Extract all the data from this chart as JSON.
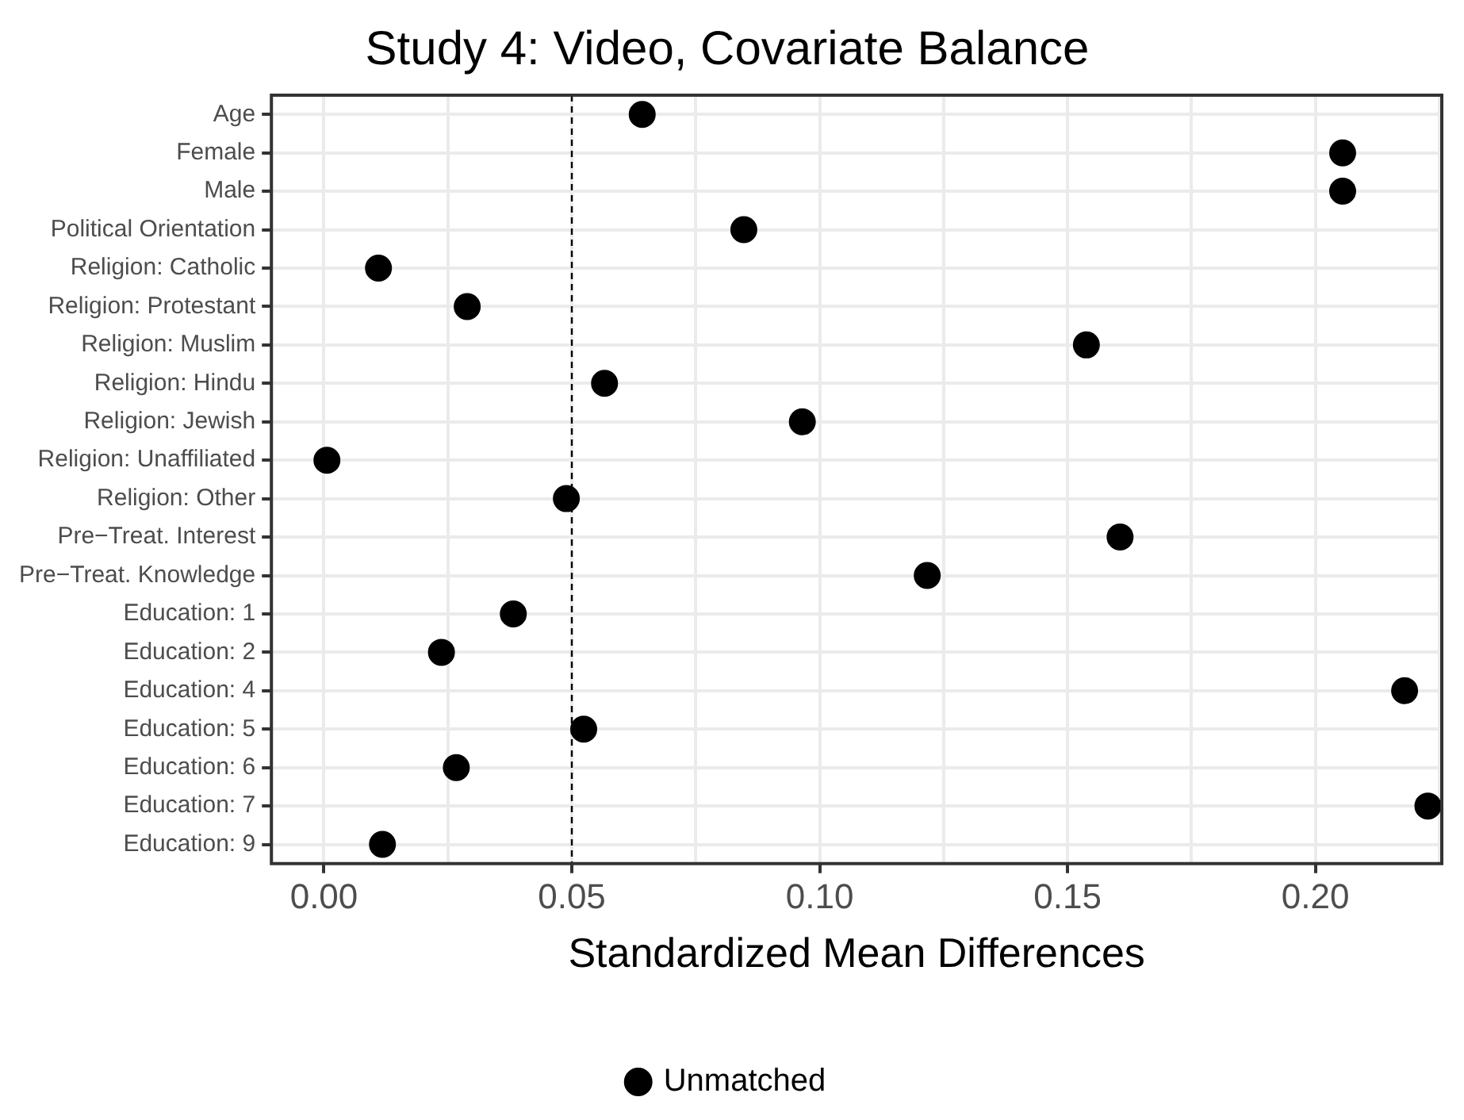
{
  "chart_data": {
    "type": "scatter",
    "title": "Study 4: Video, Covariate Balance",
    "xlabel": "Standardized Mean Differences",
    "categories": [
      "Age",
      "Female",
      "Male",
      "Political Orientation",
      "Religion: Catholic",
      "Religion: Protestant",
      "Religion: Muslim",
      "Religion: Hindu",
      "Religion: Jewish",
      "Religion: Unaffiliated",
      "Religion: Other",
      "Pre−Treat. Interest",
      "Pre−Treat. Knowledge",
      "Education: 1",
      "Education: 2",
      "Education: 4",
      "Education: 5",
      "Education: 6",
      "Education: 7",
      "Education: 9"
    ],
    "series": [
      {
        "name": "Unmatched",
        "color": "#000000",
        "values": [
          0.0642,
          0.2055,
          0.2055,
          0.0847,
          0.011,
          0.0289,
          0.1538,
          0.0566,
          0.0965,
          0.0006,
          0.0489,
          0.1606,
          0.1217,
          0.0382,
          0.0237,
          0.218,
          0.0524,
          0.0267,
          0.2227,
          0.0118
        ]
      }
    ],
    "orientation": "horizontal",
    "xlim": [
      -0.0106,
      0.2255
    ],
    "xticks": [
      {
        "value": 0,
        "label": "0.00"
      },
      {
        "value": 0.025,
        "label": null
      },
      {
        "value": 0.05,
        "label": "0.05"
      },
      {
        "value": 0.075,
        "label": null
      },
      {
        "value": 0.1,
        "label": "0.10"
      },
      {
        "value": 0.125,
        "label": null
      },
      {
        "value": 0.15,
        "label": "0.15"
      },
      {
        "value": 0.175,
        "label": null
      },
      {
        "value": 0.2,
        "label": "0.20"
      },
      {
        "value": 0.225,
        "label": null
      }
    ],
    "ref_lines": [
      {
        "axis": "x",
        "value": 0.05,
        "color": "#000000",
        "line_style": "dashed"
      }
    ],
    "grid": true,
    "legend": "bottom",
    "marker": "circle"
  }
}
